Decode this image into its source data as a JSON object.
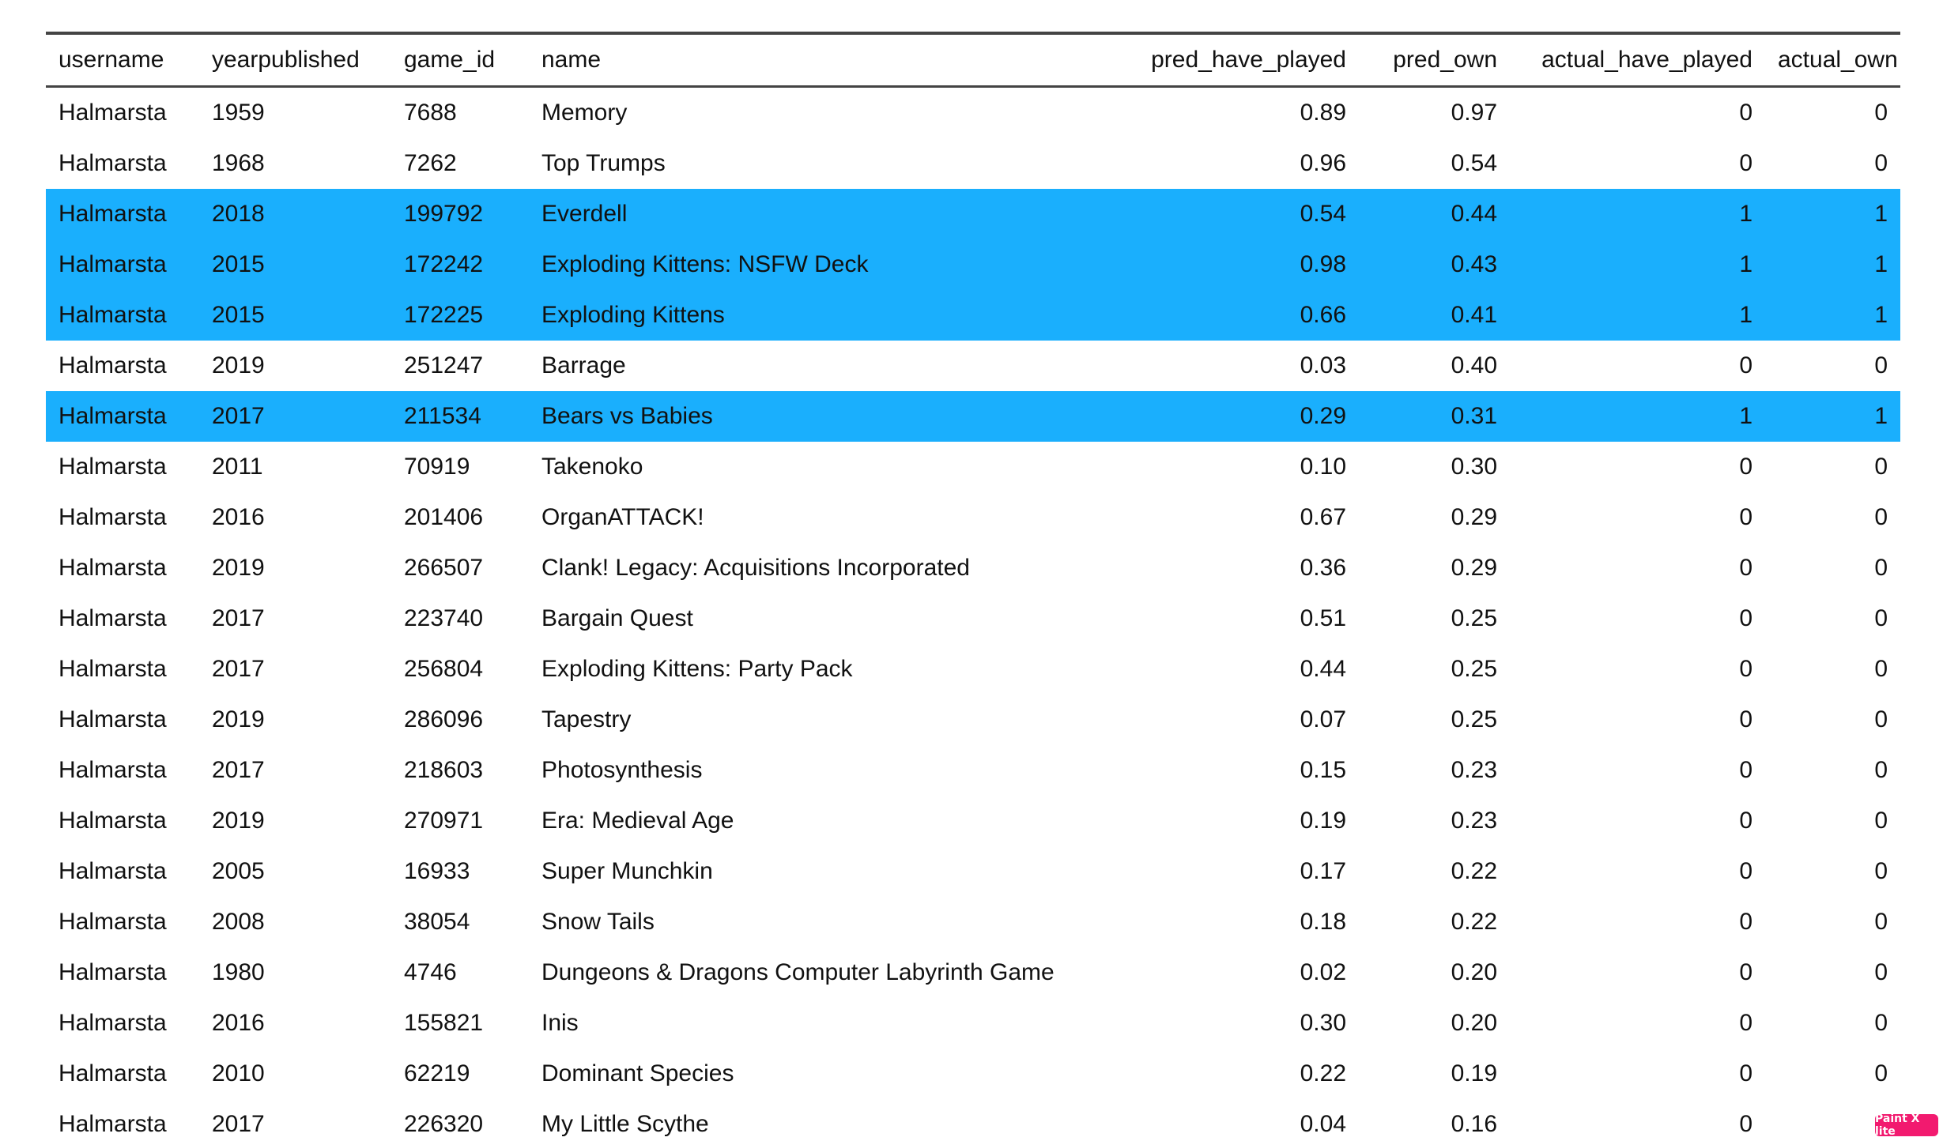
{
  "table": {
    "columns": [
      {
        "key": "username",
        "label": "username",
        "align": "left"
      },
      {
        "key": "yearpublished",
        "label": "yearpublished",
        "align": "left"
      },
      {
        "key": "game_id",
        "label": "game_id",
        "align": "left"
      },
      {
        "key": "name",
        "label": "name",
        "align": "left"
      },
      {
        "key": "pred_have_played",
        "label": "pred_have_played",
        "align": "right"
      },
      {
        "key": "pred_own",
        "label": "pred_own",
        "align": "right"
      },
      {
        "key": "actual_have_played",
        "label": "actual_have_played",
        "align": "right"
      },
      {
        "key": "actual_own",
        "label": "actual_own",
        "align": "right"
      }
    ],
    "highlight_color": "#1aaffd",
    "rows": [
      {
        "username": "Halmarsta",
        "yearpublished": "1959",
        "game_id": "7688",
        "name": "Memory",
        "pred_have_played": "0.89",
        "pred_own": "0.97",
        "actual_have_played": "0",
        "actual_own": "0",
        "highlighted": false
      },
      {
        "username": "Halmarsta",
        "yearpublished": "1968",
        "game_id": "7262",
        "name": "Top Trumps",
        "pred_have_played": "0.96",
        "pred_own": "0.54",
        "actual_have_played": "0",
        "actual_own": "0",
        "highlighted": false
      },
      {
        "username": "Halmarsta",
        "yearpublished": "2018",
        "game_id": "199792",
        "name": "Everdell",
        "pred_have_played": "0.54",
        "pred_own": "0.44",
        "actual_have_played": "1",
        "actual_own": "1",
        "highlighted": true
      },
      {
        "username": "Halmarsta",
        "yearpublished": "2015",
        "game_id": "172242",
        "name": "Exploding Kittens: NSFW Deck",
        "pred_have_played": "0.98",
        "pred_own": "0.43",
        "actual_have_played": "1",
        "actual_own": "1",
        "highlighted": true
      },
      {
        "username": "Halmarsta",
        "yearpublished": "2015",
        "game_id": "172225",
        "name": "Exploding Kittens",
        "pred_have_played": "0.66",
        "pred_own": "0.41",
        "actual_have_played": "1",
        "actual_own": "1",
        "highlighted": true
      },
      {
        "username": "Halmarsta",
        "yearpublished": "2019",
        "game_id": "251247",
        "name": "Barrage",
        "pred_have_played": "0.03",
        "pred_own": "0.40",
        "actual_have_played": "0",
        "actual_own": "0",
        "highlighted": false
      },
      {
        "username": "Halmarsta",
        "yearpublished": "2017",
        "game_id": "211534",
        "name": "Bears vs Babies",
        "pred_have_played": "0.29",
        "pred_own": "0.31",
        "actual_have_played": "1",
        "actual_own": "1",
        "highlighted": true
      },
      {
        "username": "Halmarsta",
        "yearpublished": "2011",
        "game_id": "70919",
        "name": "Takenoko",
        "pred_have_played": "0.10",
        "pred_own": "0.30",
        "actual_have_played": "0",
        "actual_own": "0",
        "highlighted": false
      },
      {
        "username": "Halmarsta",
        "yearpublished": "2016",
        "game_id": "201406",
        "name": "OrganATTACK!",
        "pred_have_played": "0.67",
        "pred_own": "0.29",
        "actual_have_played": "0",
        "actual_own": "0",
        "highlighted": false
      },
      {
        "username": "Halmarsta",
        "yearpublished": "2019",
        "game_id": "266507",
        "name": "Clank! Legacy: Acquisitions Incorporated",
        "pred_have_played": "0.36",
        "pred_own": "0.29",
        "actual_have_played": "0",
        "actual_own": "0",
        "highlighted": false
      },
      {
        "username": "Halmarsta",
        "yearpublished": "2017",
        "game_id": "223740",
        "name": "Bargain Quest",
        "pred_have_played": "0.51",
        "pred_own": "0.25",
        "actual_have_played": "0",
        "actual_own": "0",
        "highlighted": false
      },
      {
        "username": "Halmarsta",
        "yearpublished": "2017",
        "game_id": "256804",
        "name": "Exploding Kittens: Party Pack",
        "pred_have_played": "0.44",
        "pred_own": "0.25",
        "actual_have_played": "0",
        "actual_own": "0",
        "highlighted": false
      },
      {
        "username": "Halmarsta",
        "yearpublished": "2019",
        "game_id": "286096",
        "name": "Tapestry",
        "pred_have_played": "0.07",
        "pred_own": "0.25",
        "actual_have_played": "0",
        "actual_own": "0",
        "highlighted": false
      },
      {
        "username": "Halmarsta",
        "yearpublished": "2017",
        "game_id": "218603",
        "name": "Photosynthesis",
        "pred_have_played": "0.15",
        "pred_own": "0.23",
        "actual_have_played": "0",
        "actual_own": "0",
        "highlighted": false
      },
      {
        "username": "Halmarsta",
        "yearpublished": "2019",
        "game_id": "270971",
        "name": "Era: Medieval Age",
        "pred_have_played": "0.19",
        "pred_own": "0.23",
        "actual_have_played": "0",
        "actual_own": "0",
        "highlighted": false
      },
      {
        "username": "Halmarsta",
        "yearpublished": "2005",
        "game_id": "16933",
        "name": "Super Munchkin",
        "pred_have_played": "0.17",
        "pred_own": "0.22",
        "actual_have_played": "0",
        "actual_own": "0",
        "highlighted": false
      },
      {
        "username": "Halmarsta",
        "yearpublished": "2008",
        "game_id": "38054",
        "name": "Snow Tails",
        "pred_have_played": "0.18",
        "pred_own": "0.22",
        "actual_have_played": "0",
        "actual_own": "0",
        "highlighted": false
      },
      {
        "username": "Halmarsta",
        "yearpublished": "1980",
        "game_id": "4746",
        "name": "Dungeons & Dragons Computer Labyrinth Game",
        "pred_have_played": "0.02",
        "pred_own": "0.20",
        "actual_have_played": "0",
        "actual_own": "0",
        "highlighted": false
      },
      {
        "username": "Halmarsta",
        "yearpublished": "2016",
        "game_id": "155821",
        "name": "Inis",
        "pred_have_played": "0.30",
        "pred_own": "0.20",
        "actual_have_played": "0",
        "actual_own": "0",
        "highlighted": false
      },
      {
        "username": "Halmarsta",
        "yearpublished": "2010",
        "game_id": "62219",
        "name": "Dominant Species",
        "pred_have_played": "0.22",
        "pred_own": "0.19",
        "actual_have_played": "0",
        "actual_own": "0",
        "highlighted": false
      },
      {
        "username": "Halmarsta",
        "yearpublished": "2017",
        "game_id": "226320",
        "name": "My Little Scythe",
        "pred_have_played": "0.04",
        "pred_own": "0.16",
        "actual_have_played": "0",
        "actual_own": "0",
        "highlighted": false
      }
    ]
  },
  "watermark": {
    "label": "Paint X lite",
    "color": "#f21a6f"
  }
}
